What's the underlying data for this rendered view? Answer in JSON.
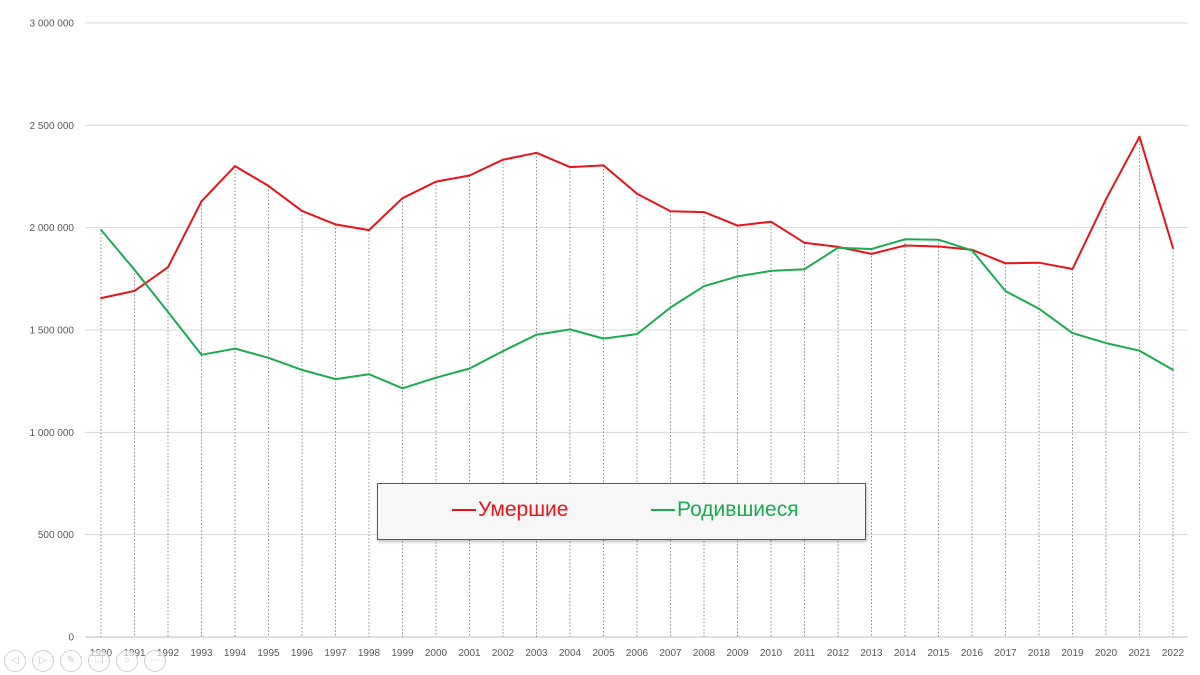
{
  "chart_data": {
    "type": "line",
    "categories": [
      "1990",
      "1991",
      "1992",
      "1993",
      "1994",
      "1995",
      "1996",
      "1997",
      "1998",
      "1999",
      "2000",
      "2001",
      "2002",
      "2003",
      "2004",
      "2005",
      "2006",
      "2007",
      "2008",
      "2009",
      "2010",
      "2011",
      "2012",
      "2013",
      "2014",
      "2015",
      "2016",
      "2017",
      "2018",
      "2019",
      "2020",
      "2021",
      "2022"
    ],
    "series": [
      {
        "name": "Умершие",
        "color": "#e8141a",
        "values": [
          1656000,
          1691000,
          1807000,
          2129000,
          2301000,
          2204000,
          2082000,
          2016000,
          1988000,
          2144000,
          2225000,
          2255000,
          2332000,
          2366000,
          2296000,
          2304000,
          2166000,
          2080000,
          2076000,
          2010000,
          2029000,
          1926000,
          1906000,
          1872000,
          1913000,
          1908000,
          1892000,
          1826000,
          1829000,
          1798000,
          2139000,
          2444000,
          1900000
        ]
      },
      {
        "name": "Родившиеся",
        "color": "#1cab52",
        "values": [
          1989000,
          1794000,
          1588000,
          1379000,
          1409000,
          1364000,
          1305000,
          1260000,
          1284000,
          1215000,
          1267000,
          1312000,
          1397000,
          1477000,
          1503000,
          1458000,
          1480000,
          1610000,
          1714000,
          1762000,
          1789000,
          1797000,
          1902000,
          1896000,
          1943000,
          1941000,
          1889000,
          1690000,
          1604000,
          1485000,
          1436000,
          1399000,
          1305000
        ]
      }
    ],
    "yticks": [
      "0",
      "500 000",
      "1 000 000",
      "1 500 000",
      "2 000 000",
      "2 500 000",
      "3 000 000"
    ],
    "ylim": [
      0,
      3000000
    ],
    "legend": "bottom-center, boxed"
  },
  "legend": {
    "deaths_label": "Умершие",
    "births_label": "Родившиеся"
  },
  "controls": [
    {
      "icon": "prev-icon",
      "glyph": "◁"
    },
    {
      "icon": "next-icon",
      "glyph": "▷"
    },
    {
      "icon": "pen-icon",
      "glyph": "✎"
    },
    {
      "icon": "copy-icon",
      "glyph": "❐"
    },
    {
      "icon": "zoom-icon",
      "glyph": "⌕"
    },
    {
      "icon": "more-icon",
      "glyph": "⋯"
    }
  ]
}
